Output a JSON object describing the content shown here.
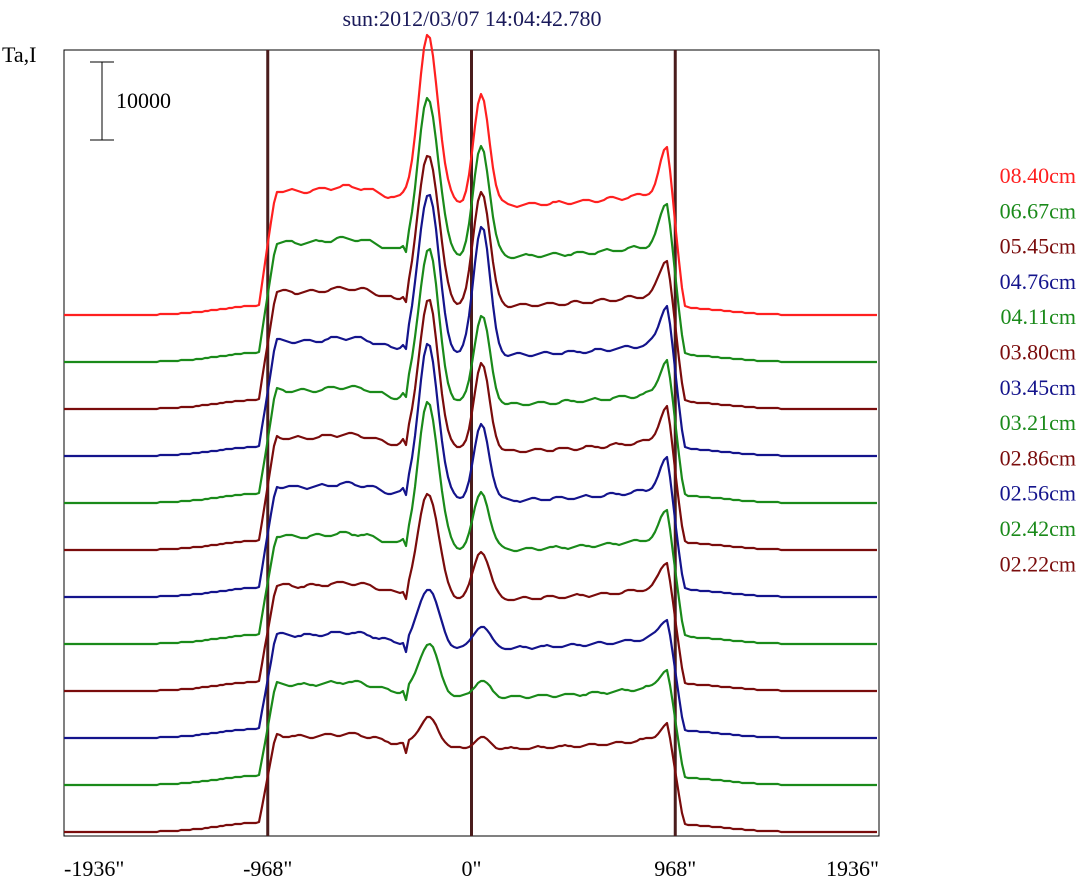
{
  "chart_data": {
    "type": "line",
    "title": "sun:2012/03/07 14:04:42.780",
    "ylabel": "Ta,I",
    "scale_bar_label": "10000",
    "x_ticks": [
      "-1936\"",
      "-968\"",
      "0\"",
      "968\"",
      "1936\""
    ],
    "x_tick_values": [
      -1936,
      -968,
      0,
      968,
      1936
    ],
    "xlim": [
      -1936,
      1936
    ],
    "vertical_lines_at": [
      -968,
      0,
      968
    ],
    "grid": false,
    "legend_placement": "right",
    "colors": {
      "red": "#ff2020",
      "green": "#1a8a1a",
      "maroon": "#7a0c0c",
      "navy": "#14148c",
      "axis": "#000000",
      "vline": "#4a1c1c",
      "title": "#1a1a5a"
    },
    "series": [
      {
        "name": "08.40cm",
        "color": "#ff2020",
        "limb": 1.0,
        "p1": 1.0,
        "p2": 0.76,
        "p3": 0.48,
        "glitch": false
      },
      {
        "name": "06.67cm",
        "color": "#1a8a1a",
        "limb": 0.96,
        "p1": 0.95,
        "p2": 0.78,
        "p3": 0.45,
        "glitch": true
      },
      {
        "name": "05.45cm",
        "color": "#7a0c0c",
        "limb": 0.94,
        "p1": 0.92,
        "p2": 0.82,
        "p3": 0.38,
        "glitch": true
      },
      {
        "name": "04.76cm",
        "color": "#14148c",
        "limb": 0.92,
        "p1": 0.98,
        "p2": 0.92,
        "p3": 0.42,
        "glitch": true
      },
      {
        "name": "04.11cm",
        "color": "#1a8a1a",
        "limb": 0.9,
        "p1": 0.93,
        "p2": 0.62,
        "p3": 0.35,
        "glitch": true
      },
      {
        "name": "03.80cm",
        "color": "#7a0c0c",
        "limb": 0.9,
        "p1": 0.89,
        "p2": 0.6,
        "p3": 0.34,
        "glitch": true
      },
      {
        "name": "03.45cm",
        "color": "#14148c",
        "limb": 0.88,
        "p1": 0.92,
        "p2": 0.52,
        "p3": 0.32,
        "glitch": true
      },
      {
        "name": "03.21cm",
        "color": "#1a8a1a",
        "limb": 0.86,
        "p1": 0.88,
        "p2": 0.4,
        "p3": 0.3,
        "glitch": true
      },
      {
        "name": "02.86cm",
        "color": "#7a0c0c",
        "limb": 0.84,
        "p1": 0.64,
        "p2": 0.34,
        "p3": 0.28,
        "glitch": true
      },
      {
        "name": "02.56cm",
        "color": "#14148c",
        "limb": 0.82,
        "p1": 0.36,
        "p2": 0.16,
        "p3": 0.2,
        "glitch": true
      },
      {
        "name": "02.42cm",
        "color": "#1a8a1a",
        "limb": 0.8,
        "p1": 0.32,
        "p2": 0.12,
        "p3": 0.18,
        "glitch": true
      },
      {
        "name": "02.22cm",
        "color": "#7a0c0c",
        "limb": 0.76,
        "p1": 0.18,
        "p2": 0.08,
        "p3": 0.14,
        "glitch": true
      }
    ]
  }
}
